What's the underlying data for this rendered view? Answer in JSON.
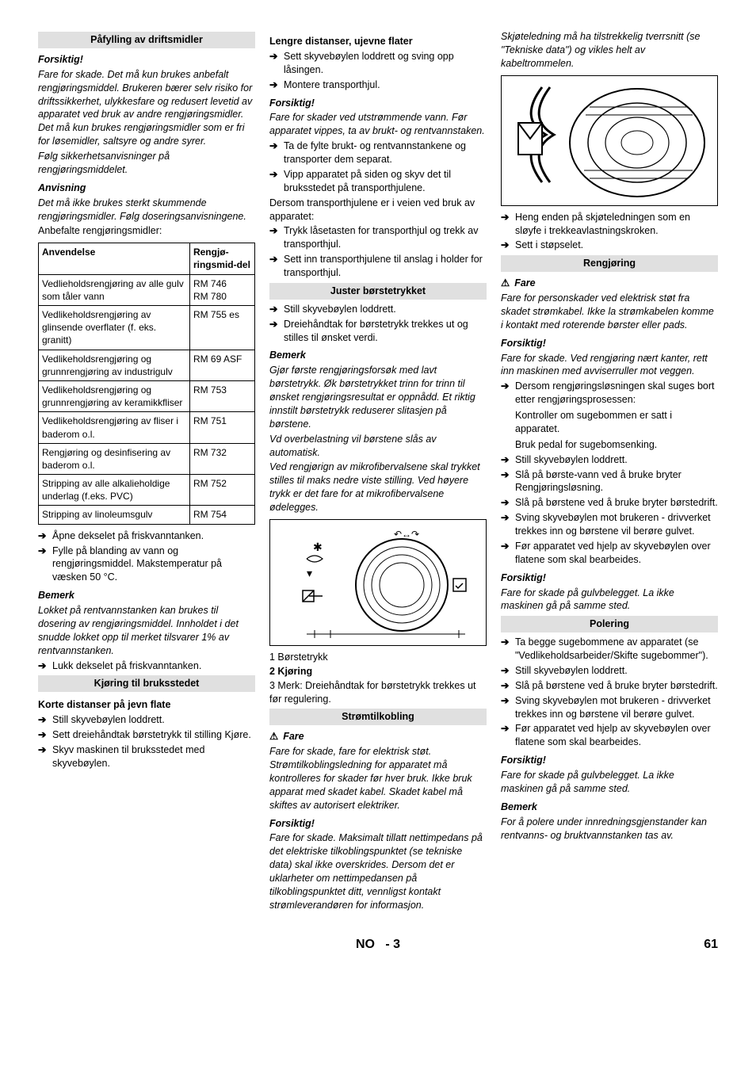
{
  "col1": {
    "header1": "Påfylling av driftsmidler",
    "forsiktig": "Forsiktig!",
    "forsiktig_text": "Fare for skade. Det må kun brukes anbefalt rengjøringsmiddel. Brukeren bærer selv risiko for driftssikkerhet, ulykkesfare og redusert levetid av apparatet ved bruk av andre rengjøringsmidler. Det må kun brukes rengjøringsmidler som er fri for løsemidler, saltsyre og andre syrer.",
    "forsiktig_text2": "Følg sikkerhetsanvisninger på rengjøringsmiddelet.",
    "anvisning": "Anvisning",
    "anvisning_text": "Det må ikke brukes sterkt skummende rengjøringsmidler. Følg doseringsanvisningene.",
    "anbefalte": "Anbefalte rengjøringsmidler:",
    "table": {
      "th1": "Anvendelse",
      "th2": "Rengjø-ringsmid-del",
      "rows": [
        [
          "Vedlieholdsrengjøring av alle gulv som tåler vann",
          "RM 746\nRM 780"
        ],
        [
          "Vedlikeholdsrengjøring av glinsende overflater (f. eks. granitt)",
          "RM 755 es"
        ],
        [
          "Vedlikeholdsrengjøring og grunnrengjøring av industrigulv",
          "RM 69 ASF"
        ],
        [
          "Vedlikeholdsrengjøring og grunnrengjøring av keramikkfliser",
          "RM 753"
        ],
        [
          "Vedlikeholdsrengjøring av fliser i baderom o.l.",
          "RM 751"
        ],
        [
          "Rengjøring og desinfisering av baderom o.l.",
          "RM 732"
        ],
        [
          "Stripping av alle alkalieholdige underlag (f.eks. PVC)",
          "RM 752"
        ],
        [
          "Stripping av linoleumsgulv",
          "RM 754"
        ]
      ]
    },
    "arrows1": [
      "Åpne dekselet på friskvanntanken.",
      "Fylle på blanding av vann og rengjøringsmiddel. Makstemperatur på væsken 50 °C."
    ],
    "bemerk": "Bemerk",
    "bemerk_text": "Lokket på rentvannstanken kan brukes til dosering av rengjøringsmiddel. Innholdet i det snudde lokket opp til merket tilsvarer 1% av rentvannstanken.",
    "arrow2": "Lukk dekselet på friskvanntanken.",
    "header2": "Kjøring til bruksstedet",
    "korte": "Korte distanser på jevn flate",
    "arrows3": [
      "Still skyvebøylen loddrett.",
      "Sett dreiehåndtak børstetrykk til stilling Kjøre.",
      "Skyv maskinen til bruksstedet med skyvebøylen."
    ]
  },
  "col2": {
    "lengre": "Lengre distanser, ujevne flater",
    "arrows1": [
      "Sett skyvebøylen loddrett og sving opp låsingen.",
      "Montere transporthjul."
    ],
    "forsiktig": "Forsiktig!",
    "forsiktig_text": "Fare for skader ved utstrømmende vann. Før apparatet vippes, ta av brukt- og rentvannstaken.",
    "arrows2": [
      "Ta de fylte brukt- og rentvannstankene og transporter dem separat.",
      "Vipp apparatet på siden og skyv det til bruksstedet på transporthjulene."
    ],
    "dersom": "Dersom transporthjulene er i veien ved bruk av apparatet:",
    "arrows3": [
      "Trykk låsetasten for transporthjul og trekk av transporthjul.",
      "Sett inn transporthjulene til anslag i holder for transporthjul."
    ],
    "header1": "Juster børstetrykket",
    "arrows4": [
      "Still skyvebøylen loddrett.",
      "Dreiehåndtak for børstetrykk trekkes ut og stilles til ønsket verdi."
    ],
    "bemerk": "Bemerk",
    "bemerk_text": "Gjør første rengjøringsforsøk med lavt børstetrykk. Øk børstetrykket trinn for trinn til ønsket rengjøringsresultat er oppnådd. Et riktig innstilt børstetrykk reduserer slitasjen på børstene.",
    "bemerk_text2": "Vd overbelastning vil børstene slås av automatisk.",
    "bemerk_text3": "Ved rengjørign av mikrofibervalsene skal trykket stilles til maks nedre viste stilling. Ved høyere trykk er det fare for at mikrofibervalsene ødelegges.",
    "captions": {
      "c1": "1    Børstetrykk",
      "c2": "2    Kjøring",
      "c3": "3    Merk: Dreiehåndtak for børstetrykk trekkes ut før regulering."
    },
    "header2": "Strømtilkobling",
    "fare": "Fare",
    "fare_text": "Fare for skade, fare for elektrisk støt. Strømtilkoblingsledning for apparatet må kontrolleres for skader før hver bruk. Ikke bruk apparat med skadet kabel. Skadet kabel må skiftes av autorisert elektriker.",
    "forsiktig2": "Forsiktig!",
    "forsiktig2_text": "Fare for skade. Maksimalt tillatt nettimpedans på det elektriske tilkoblingspunktet (se tekniske data) skal ikke overskrides. Dersom det er uklarheter om nettimpedansen på tilkoblingspunktet ditt, vennligst kontakt strømleverandøren for informasjon."
  },
  "col3": {
    "skjote": "Skjøteledning må ha tilstrekkelig tverrsnitt (se \"Tekniske data\") og vikles helt av kabeltrommelen.",
    "arrows1": [
      "Heng enden på skjøteledningen som en sløyfe i trekkeavlastningskroken.",
      "Sett i støpselet."
    ],
    "header1": "Rengjøring",
    "fare": "Fare",
    "fare_text": "Fare for personskader ved elektrisk støt fra skadet strømkabel. Ikke la strømkabelen komme i kontakt med roterende børster eller pads.",
    "forsiktig": "Forsiktig!",
    "forsiktig_text": "Fare for skade. Ved rengjøring nært kanter, rett inn maskinen med avviserruller mot veggen.",
    "arrows2_a": "Dersom rengjøringsløsningen skal suges bort etter rengjøringsprosessen:",
    "arrows2_b1": "Kontroller om sugebommen er satt i apparatet.",
    "arrows2_b2": "Bruk pedal for sugebomsenking.",
    "arrows3": [
      "Still skyvebøylen loddrett.",
      "Slå på børste-vann ved å bruke bryter Rengjøringsløsning.",
      "Slå på børstene ved å bruke bryter børstedrift.",
      "Sving skyvebøylen mot brukeren - drivverket trekkes inn og børstene vil berøre gulvet.",
      "Før apparatet ved hjelp av skyvebøylen over flatene som skal bearbeides."
    ],
    "forsiktig2": "Forsiktig!",
    "forsiktig2_text": "Fare for skade på gulvbelegget. La ikke maskinen gå på samme sted.",
    "header2": "Polering",
    "arrows4": [
      "Ta begge sugebommene av apparatet (se \"Vedlikeholdsarbeider/Skifte sugebommer\").",
      "Still skyvebøylen loddrett.",
      "Slå på børstene ved å bruke bryter børstedrift.",
      "Sving skyvebøylen mot brukeren - drivverket trekkes inn og børstene vil berøre gulvet.",
      "Før apparatet ved hjelp av skyvebøylen over flatene som skal bearbeides."
    ],
    "forsiktig3": "Forsiktig!",
    "forsiktig3_text": "Fare for skade på gulvbelegget. La ikke maskinen gå på samme sted.",
    "bemerk": "Bemerk",
    "bemerk_text": "For å polere under innredningsgjenstander kan rentvanns- og bruktvannstanken tas av."
  },
  "footer": {
    "lang": "NO",
    "page_rel": "3",
    "page_abs": "61"
  }
}
